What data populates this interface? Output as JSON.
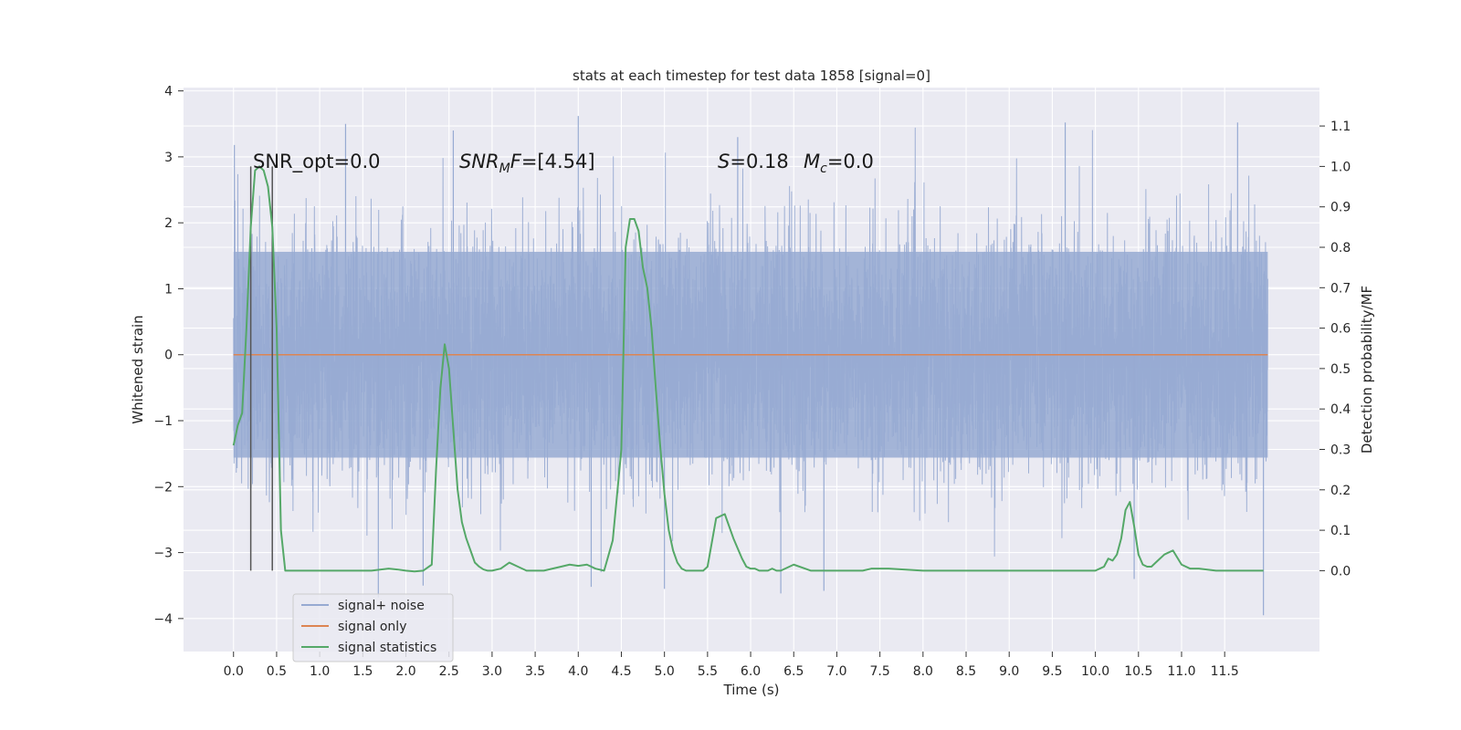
{
  "chart_data": {
    "type": "line",
    "title": "stats at each timestep for test data 1858 [signal=0]",
    "xlabel": "Time (s)",
    "ylabel": "Whitened strain",
    "y2label": "Detection probability/MF",
    "xlim": [
      -0.58,
      12.6
    ],
    "ylim": [
      -4.5,
      4.05
    ],
    "y2lim": [
      -0.2,
      1.195
    ],
    "xticks": [
      "0.0",
      "0.5",
      "1.0",
      "1.5",
      "2.0",
      "2.5",
      "3.0",
      "3.5",
      "4.0",
      "4.5",
      "5.0",
      "5.5",
      "6.0",
      "6.5",
      "7.0",
      "7.5",
      "8.0",
      "8.5",
      "9.0",
      "9.5",
      "10.0",
      "10.5",
      "11.0",
      "11.5"
    ],
    "yticks": [
      "4",
      "3",
      "2",
      "1",
      "0",
      "−1",
      "−2",
      "−3",
      "−4"
    ],
    "y2ticks": [
      "1.1",
      "1.0",
      "0.9",
      "0.8",
      "0.7",
      "0.6",
      "0.5",
      "0.4",
      "0.3",
      "0.2",
      "0.1",
      "0.0"
    ],
    "grid": true,
    "legend_position": "lower-left",
    "annotations": {
      "snr_opt": "SNR_opt=0.0",
      "snr_mf_main": "SNR",
      "snr_mf_sub": "M",
      "snr_mf_rest": "F=[4.54]",
      "s_main": "S",
      "s_rest": "=0.18",
      "mc_main": "M",
      "mc_sub": "c",
      "mc_rest": "=0.0"
    },
    "vlines_x": [
      0.2,
      0.45
    ],
    "series": [
      {
        "name": "signal+ noise",
        "color": "#97aad2",
        "kind": "noise",
        "x_range": [
          0.0,
          12.0
        ],
        "envelope": {
          "typical_range": [
            -2.0,
            2.0
          ],
          "max": 3.62,
          "min": -3.95
        },
        "peaks": [
          {
            "x": 0.01,
            "y": 3.18
          },
          {
            "x": 1.3,
            "y": 3.5
          },
          {
            "x": 2.55,
            "y": 3.4
          },
          {
            "x": 4.0,
            "y": 3.62
          },
          {
            "x": 5.85,
            "y": 3.3
          },
          {
            "x": 9.65,
            "y": 3.52
          },
          {
            "x": 11.65,
            "y": 3.52
          },
          {
            "x": 1.68,
            "y": -3.68
          },
          {
            "x": 2.2,
            "y": -3.5
          },
          {
            "x": 4.15,
            "y": -3.52
          },
          {
            "x": 5.0,
            "y": -3.55
          },
          {
            "x": 6.35,
            "y": -3.62
          },
          {
            "x": 6.85,
            "y": -3.58
          },
          {
            "x": 10.45,
            "y": -3.4
          },
          {
            "x": 11.95,
            "y": -3.95
          }
        ]
      },
      {
        "name": "signal only",
        "color": "#dd8452",
        "x": [
          0.0,
          12.0
        ],
        "y": [
          0.0,
          0.0
        ]
      },
      {
        "name": "signal statistics",
        "color": "#55a868",
        "axis": "right",
        "x": [
          0.0,
          0.05,
          0.1,
          0.15,
          0.2,
          0.25,
          0.3,
          0.35,
          0.4,
          0.45,
          0.5,
          0.55,
          0.6,
          0.65,
          0.7,
          0.8,
          1.0,
          1.2,
          1.4,
          1.6,
          1.8,
          1.9,
          2.0,
          2.1,
          2.2,
          2.3,
          2.35,
          2.4,
          2.45,
          2.5,
          2.55,
          2.6,
          2.65,
          2.7,
          2.75,
          2.8,
          2.85,
          2.9,
          2.95,
          3.0,
          3.1,
          3.2,
          3.3,
          3.4,
          3.5,
          3.6,
          3.8,
          3.9,
          4.0,
          4.1,
          4.2,
          4.3,
          4.4,
          4.5,
          4.55,
          4.6,
          4.65,
          4.7,
          4.75,
          4.8,
          4.85,
          4.9,
          4.95,
          5.0,
          5.05,
          5.1,
          5.15,
          5.2,
          5.25,
          5.3,
          5.35,
          5.4,
          5.45,
          5.5,
          5.6,
          5.7,
          5.8,
          5.9,
          5.95,
          6.0,
          6.05,
          6.1,
          6.15,
          6.2,
          6.25,
          6.3,
          6.35,
          6.5,
          6.7,
          6.9,
          7.1,
          7.2,
          7.3,
          7.4,
          7.6,
          8.0,
          8.4,
          8.6,
          9.0,
          9.6,
          10.0,
          10.05,
          10.1,
          10.15,
          10.2,
          10.25,
          10.3,
          10.35,
          10.4,
          10.45,
          10.5,
          10.55,
          10.6,
          10.65,
          10.7,
          10.8,
          10.9,
          11.0,
          11.1,
          11.2,
          11.4,
          11.6,
          11.8,
          11.95
        ],
        "y": [
          0.31,
          0.36,
          0.39,
          0.6,
          0.85,
          0.99,
          1.0,
          0.99,
          0.95,
          0.85,
          0.6,
          0.1,
          0.0,
          0.0,
          0.0,
          0.0,
          0.0,
          0.0,
          0.0,
          0.0,
          0.005,
          0.003,
          0.0,
          -0.002,
          0.0,
          0.015,
          0.25,
          0.45,
          0.56,
          0.5,
          0.35,
          0.2,
          0.12,
          0.08,
          0.05,
          0.02,
          0.01,
          0.003,
          0.0,
          0.0,
          0.005,
          0.02,
          0.01,
          0.0,
          0.0,
          0.0,
          0.01,
          0.015,
          0.012,
          0.015,
          0.005,
          0.0,
          0.075,
          0.3,
          0.8,
          0.87,
          0.87,
          0.84,
          0.75,
          0.7,
          0.6,
          0.45,
          0.31,
          0.19,
          0.1,
          0.05,
          0.02,
          0.005,
          0.0,
          0.0,
          0.0,
          0.0,
          0.0,
          0.01,
          0.13,
          0.14,
          0.08,
          0.03,
          0.01,
          0.005,
          0.005,
          0.0,
          0.0,
          0.0,
          0.005,
          0.0,
          0.0,
          0.015,
          0.0,
          0.0,
          0.0,
          0.0,
          0.0,
          0.005,
          0.005,
          0.0,
          0.0,
          0.0,
          0.0,
          0.0,
          0.0,
          0.005,
          0.01,
          0.03,
          0.025,
          0.04,
          0.08,
          0.15,
          0.17,
          0.11,
          0.04,
          0.015,
          0.01,
          0.01,
          0.02,
          0.04,
          0.05,
          0.015,
          0.005,
          0.005,
          0.0,
          0.0,
          0.0,
          0.0
        ]
      }
    ]
  }
}
